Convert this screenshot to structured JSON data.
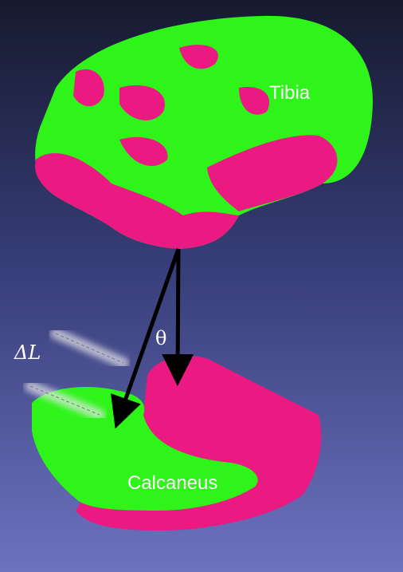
{
  "labels": {
    "tibia": "Tibia",
    "theta": "θ",
    "delta_l": "ΔL",
    "calcaneus": "Calcaneus"
  }
}
